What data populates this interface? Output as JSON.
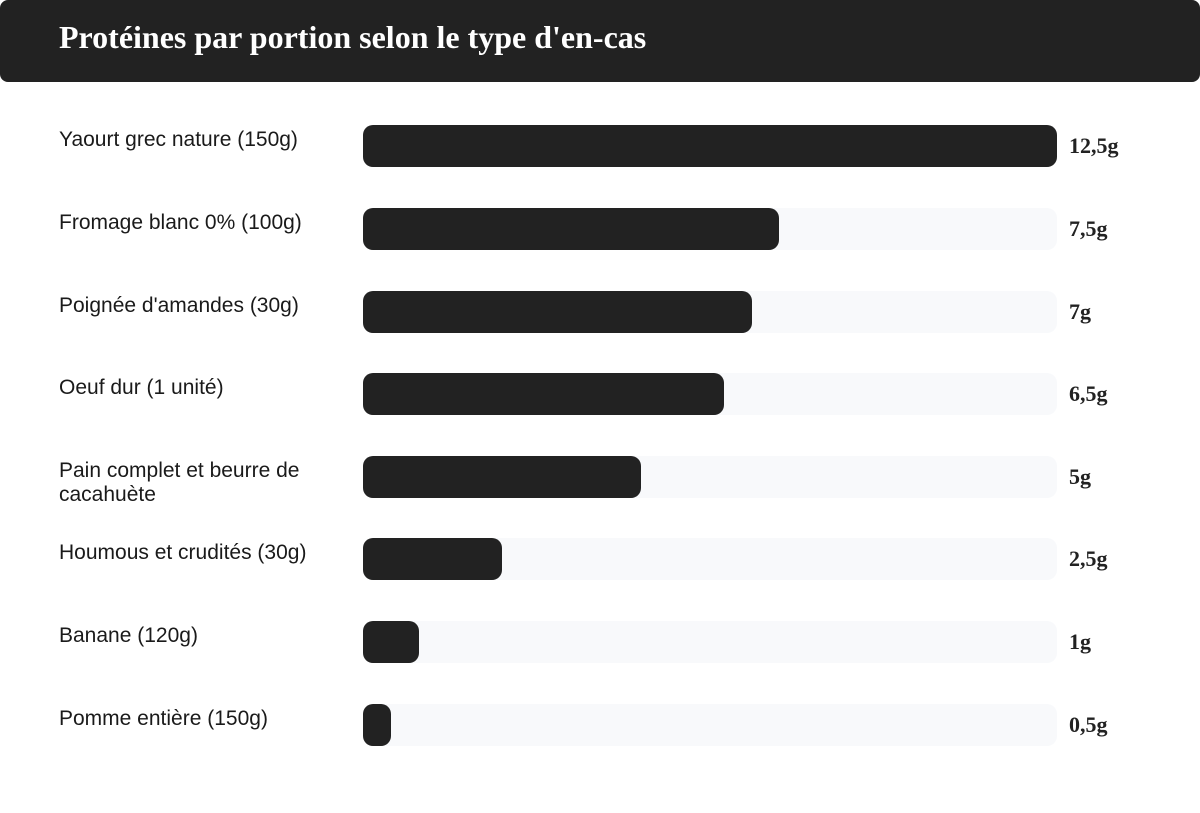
{
  "chart_data": {
    "type": "bar",
    "orientation": "horizontal",
    "title": "Protéines par portion selon le type d'en-cas",
    "xlim": [
      0,
      12.5
    ],
    "grid": false,
    "legend": "none",
    "colors": {
      "bar": "#222222",
      "track": "#f8f9fb",
      "header": "#222222"
    },
    "categories": [
      "Yaourt grec nature (150g)",
      "Fromage blanc 0% (100g)",
      "Poignée d'amandes (30g)",
      "Oeuf dur (1 unité)",
      "Pain complet et beurre de cacahuète",
      "Houmous et crudités (30g)",
      "Banane (120g)",
      "Pomme entière (150g)"
    ],
    "values": [
      12.5,
      7.5,
      7,
      6.5,
      5,
      2.5,
      1,
      0.5
    ],
    "value_labels": [
      "12,5g",
      "7,5g",
      "7g",
      "6,5g",
      "5g",
      "2,5g",
      "1g",
      "0,5g"
    ]
  }
}
